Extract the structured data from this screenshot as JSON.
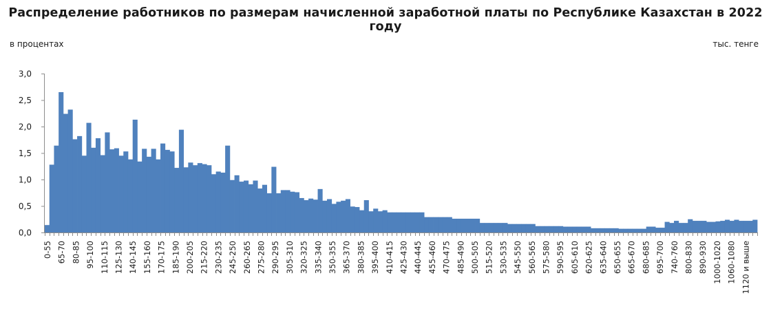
{
  "chart_data": {
    "type": "bar",
    "title": "Распределение работников по размерам начисленной заработной платы по Республике Казахстан в 2022 году",
    "ylabel": "в процентах",
    "xlabel": "тыс. тенге",
    "ylim": [
      0,
      3.0
    ],
    "yticks": [
      "0,0",
      "0,5",
      "1,0",
      "1,5",
      "2,0",
      "2,5",
      "3,0"
    ],
    "grid": false,
    "legend": null,
    "bar_color": "#4f81bd",
    "tick_labels": [
      "0-55",
      "65-70",
      "80-85",
      "95-100",
      "110-115",
      "125-130",
      "140-145",
      "155-160",
      "170-175",
      "185-190",
      "200-205",
      "215-220",
      "230-235",
      "245-250",
      "260-265",
      "275-280",
      "290-295",
      "305-310",
      "320-325",
      "335-340",
      "350-355",
      "365-370",
      "380-385",
      "395-400",
      "410-415",
      "425-430",
      "440-445",
      "455-460",
      "470-475",
      "485-490",
      "500-505",
      "515-520",
      "530-535",
      "545-550",
      "560-565",
      "575-580",
      "590-595",
      "605-610",
      "620-625",
      "635-640",
      "650-655",
      "665-670",
      "680-685",
      "695-700",
      "740-760",
      "800-830",
      "890-930",
      "1000-1020",
      "1060-1080",
      "1120 и выше"
    ],
    "values": [
      0.14,
      1.28,
      1.64,
      2.65,
      2.24,
      2.32,
      1.76,
      1.82,
      1.45,
      2.07,
      1.6,
      1.78,
      1.46,
      1.89,
      1.57,
      1.59,
      1.45,
      1.53,
      1.38,
      2.13,
      1.34,
      1.58,
      1.43,
      1.58,
      1.38,
      1.68,
      1.56,
      1.53,
      1.22,
      1.94,
      1.23,
      1.32,
      1.27,
      1.31,
      1.29,
      1.27,
      1.1,
      1.15,
      1.13,
      1.64,
      0.99,
      1.08,
      0.96,
      0.98,
      0.91,
      0.98,
      0.83,
      0.9,
      0.74,
      1.24,
      0.74,
      0.8,
      0.8,
      0.77,
      0.76,
      0.65,
      0.61,
      0.64,
      0.62,
      0.82,
      0.6,
      0.63,
      0.54,
      0.58,
      0.6,
      0.63,
      0.49,
      0.48,
      0.42,
      0.61,
      0.4,
      0.45,
      0.4,
      0.42,
      0.38,
      0.38,
      0.38,
      0.38,
      0.38,
      0.38,
      0.38,
      0.38,
      0.29,
      0.29,
      0.29,
      0.29,
      0.29,
      0.29,
      0.26,
      0.26,
      0.26,
      0.26,
      0.26,
      0.26,
      0.18,
      0.18,
      0.18,
      0.18,
      0.18,
      0.18,
      0.16,
      0.16,
      0.16,
      0.16,
      0.16,
      0.16,
      0.12,
      0.12,
      0.12,
      0.12,
      0.12,
      0.12,
      0.11,
      0.11,
      0.11,
      0.11,
      0.11,
      0.11,
      0.08,
      0.08,
      0.08,
      0.08,
      0.08,
      0.08,
      0.07,
      0.07,
      0.07,
      0.07,
      0.07,
      0.07,
      0.11,
      0.11,
      0.09,
      0.09,
      0.2,
      0.18,
      0.22,
      0.18,
      0.18,
      0.25,
      0.22,
      0.22,
      0.22,
      0.2,
      0.2,
      0.21,
      0.22,
      0.24,
      0.22,
      0.24,
      0.22,
      0.22,
      0.22,
      0.24
    ]
  }
}
